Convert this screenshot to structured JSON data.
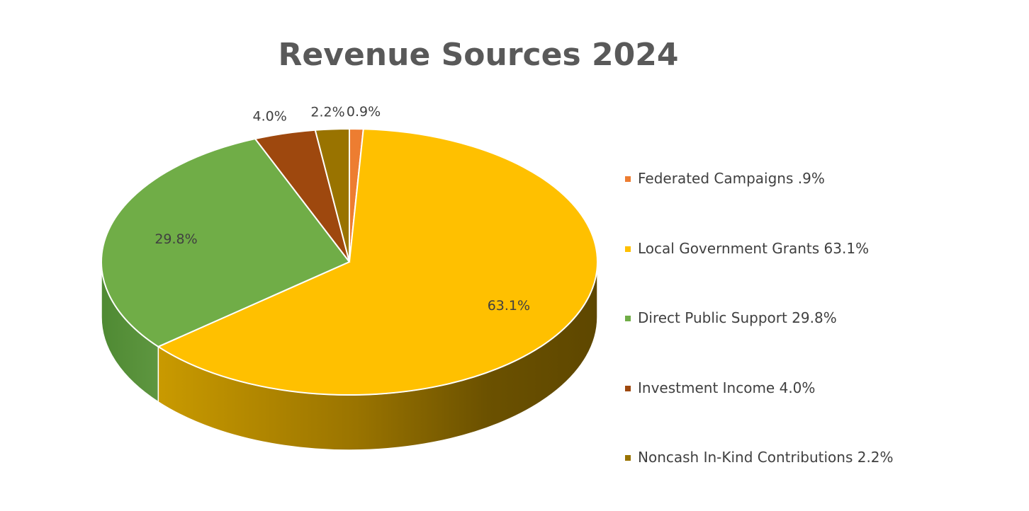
{
  "chart_data": {
    "type": "pie",
    "title": "Revenue Sources 2024",
    "three_d": true,
    "slices": [
      {
        "name": "Federated Campaigns .9%",
        "value": 0.9,
        "label": "0.9%",
        "color": "#ED7D31"
      },
      {
        "name": "Local Government Grants 63.1%",
        "value": 63.1,
        "label": "63.1%",
        "color": "#FFC000"
      },
      {
        "name": "Direct Public Support 29.8%",
        "value": 29.8,
        "label": "29.8%",
        "color": "#70AD47"
      },
      {
        "name": "Investment Income 4.0%",
        "value": 4.0,
        "label": "4.0%",
        "color": "#9E480E"
      },
      {
        "name": "Noncash In-Kind Contributions 2.2%",
        "value": 2.2,
        "label": "2.2%",
        "color": "#997300"
      }
    ],
    "legend_position": "right"
  }
}
